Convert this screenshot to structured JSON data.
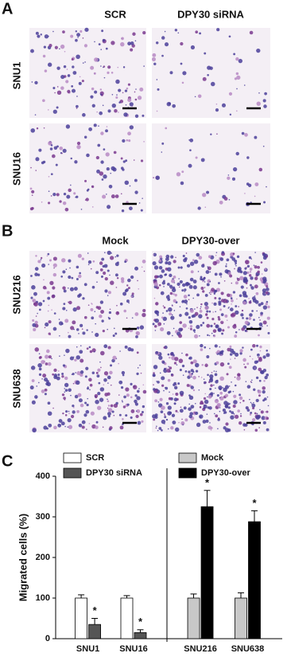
{
  "panel_a": {
    "label": "A",
    "columns": [
      "SCR",
      "DPY30 siRNA"
    ],
    "rows": [
      "SNU1",
      "SNU16"
    ]
  },
  "panel_b": {
    "label": "B",
    "columns": [
      "Mock",
      "DPY30-over"
    ],
    "rows": [
      "SNU216",
      "SNU638"
    ]
  },
  "panel_c": {
    "label": "C"
  },
  "chart_data": {
    "type": "bar",
    "y_label": "Migrated cells (%)",
    "categories": [
      "SNU1",
      "SNU16",
      "SNU216",
      "SNU638"
    ],
    "series": [
      {
        "name": "SCR",
        "color": "#ffffff",
        "values": [
          100,
          100,
          null,
          null
        ],
        "errors": [
          8,
          6,
          null,
          null
        ]
      },
      {
        "name": "DPY30 siRNA",
        "color": "#555555",
        "values": [
          35,
          15,
          null,
          null
        ],
        "errors": [
          15,
          7,
          null,
          null
        ]
      },
      {
        "name": "Mock",
        "color": "#c8c8c8",
        "values": [
          null,
          null,
          100,
          100
        ],
        "errors": [
          null,
          null,
          10,
          13
        ]
      },
      {
        "name": "DPY30-over",
        "color": "#000000",
        "values": [
          null,
          null,
          325,
          288
        ],
        "errors": [
          null,
          null,
          40,
          27
        ]
      }
    ],
    "annotations": [
      {
        "text": "*",
        "category": "SNU1",
        "series": "DPY30 siRNA"
      },
      {
        "text": "*",
        "category": "SNU16",
        "series": "DPY30 siRNA"
      },
      {
        "text": "*",
        "category": "SNU216",
        "series": "DPY30-over"
      },
      {
        "text": "*",
        "category": "SNU638",
        "series": "DPY30-over"
      }
    ],
    "ylim": [
      0,
      400
    ],
    "yticks": [
      0,
      100,
      200,
      300,
      400
    ]
  }
}
